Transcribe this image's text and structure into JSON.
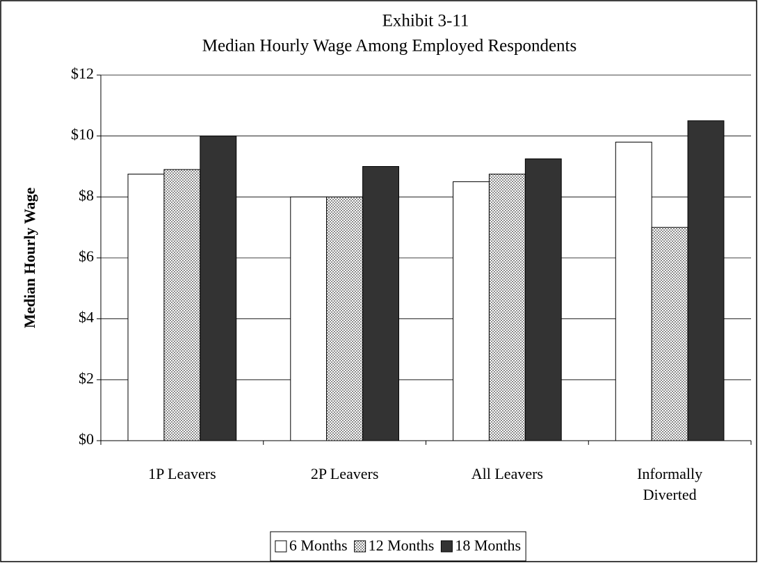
{
  "chart_data": {
    "type": "bar",
    "title": "Exhibit 3-11",
    "subtitle": "Median Hourly Wage Among Employed Respondents",
    "y_label": "Median Hourly Wage",
    "categories": [
      "1P Leavers",
      "2P Leavers",
      "All Leavers",
      "Informally Diverted"
    ],
    "series": [
      {
        "name": "6 Months",
        "color": "#ffffff",
        "values": [
          8.75,
          8,
          8.5,
          9.8
        ]
      },
      {
        "name": "12 Months",
        "color": "#8c8c8c",
        "pattern": "checker",
        "values": [
          8.9,
          8,
          8.75,
          7
        ]
      },
      {
        "name": "18 Months",
        "color": "#333333",
        "values": [
          10,
          9,
          9.25,
          10.5
        ]
      }
    ],
    "ylim": [
      0,
      12
    ],
    "yticks": [
      {
        "value": 0,
        "label": "$0"
      },
      {
        "value": 2,
        "label": "$2"
      },
      {
        "value": 4,
        "label": "$4"
      },
      {
        "value": 6,
        "label": "$6"
      },
      {
        "value": 8,
        "label": "$8"
      },
      {
        "value": 10,
        "label": "$10"
      },
      {
        "value": 12,
        "label": "$12"
      }
    ],
    "grid": true,
    "legend": "bottom"
  }
}
